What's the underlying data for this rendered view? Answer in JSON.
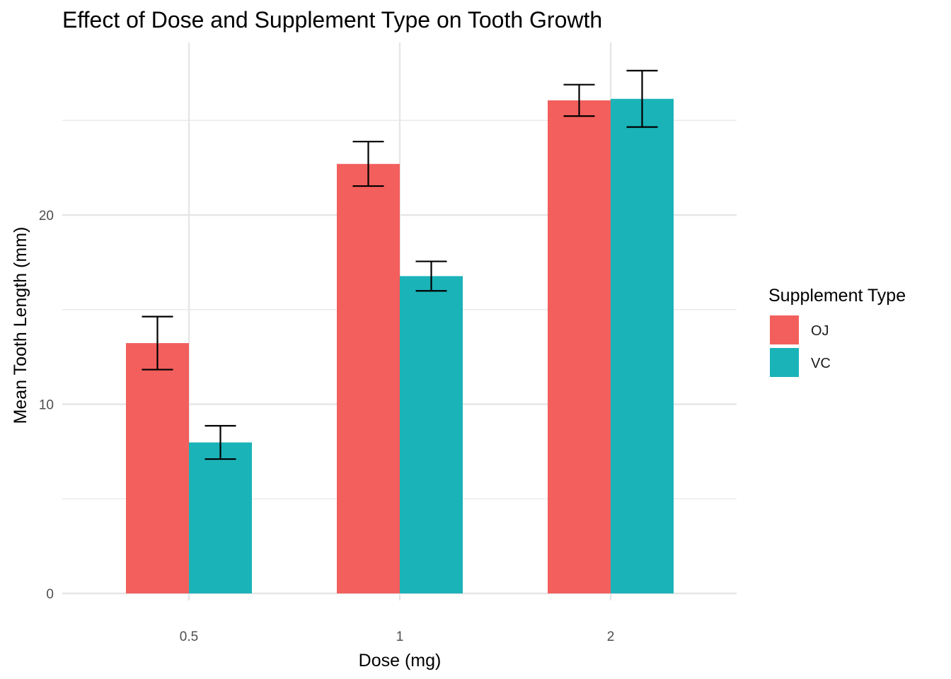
{
  "chart_data": {
    "type": "bar",
    "title": "Effect of Dose and Supplement Type on Tooth Growth",
    "xlabel": "Dose (mg)",
    "ylabel": "Mean Tooth Length (mm)",
    "categories": [
      "0.5",
      "1",
      "2"
    ],
    "ylim": [
      0,
      27.5
    ],
    "y_ticks": [
      0,
      10,
      20
    ],
    "grid": true,
    "legend": {
      "title": "Supplement Type",
      "position": "right"
    },
    "series": [
      {
        "name": "OJ",
        "color": "#F25F5C",
        "values": [
          13.23,
          22.7,
          26.06
        ],
        "error_low": [
          11.83,
          21.53,
          25.23
        ],
        "error_high": [
          14.63,
          23.88,
          26.89
        ]
      },
      {
        "name": "VC",
        "color": "#1AB3B8",
        "values": [
          7.98,
          16.77,
          26.14
        ],
        "error_low": [
          7.1,
          15.99,
          24.65
        ],
        "error_high": [
          8.86,
          17.55,
          27.63
        ]
      }
    ]
  }
}
